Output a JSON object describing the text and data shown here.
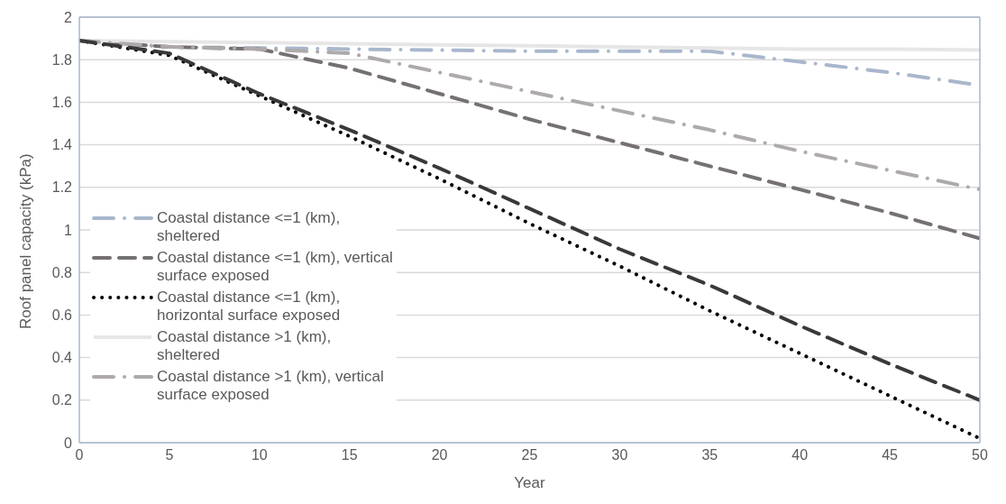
{
  "chart_data": {
    "type": "line",
    "xlabel": "Year",
    "ylabel": "Roof panel capacity (kPa)",
    "x": [
      0,
      5,
      10,
      15,
      20,
      25,
      30,
      35,
      40,
      45,
      50
    ],
    "xlim": [
      0,
      50
    ],
    "xticks": [
      0,
      5,
      10,
      15,
      20,
      25,
      30,
      35,
      40,
      45,
      50
    ],
    "ylim": [
      0,
      2
    ],
    "yticks": [
      0,
      0.2,
      0.4,
      0.6,
      0.8,
      1,
      1.2,
      1.4,
      1.6,
      1.8,
      2
    ],
    "grid": "y",
    "legend": "left",
    "marker": "none",
    "series": [
      {
        "name": "Coastal distance <=1 (km), sheltered",
        "color": "#a9b7cc",
        "line_style": "dashdot",
        "values": [
          1.89,
          1.86,
          1.855,
          1.85,
          1.845,
          1.84,
          1.84,
          1.84,
          1.79,
          1.74,
          1.68
        ]
      },
      {
        "name": "Coastal distance <=1 (km), vertical surface exposed",
        "color": "#767171",
        "line_style": "dashed",
        "values": [
          1.89,
          1.86,
          1.85,
          1.76,
          1.64,
          1.52,
          1.41,
          1.3,
          1.19,
          1.08,
          0.96
        ]
      },
      {
        "name": "Coastal distance <=1 (km), horizontal surface exposed",
        "color": "#000000",
        "line_style": "dotted",
        "values": [
          1.89,
          1.82,
          1.63,
          1.44,
          1.24,
          1.03,
          0.83,
          0.62,
          0.42,
          0.22,
          0.02
        ]
      },
      {
        "name": "Coastal distance >1 (km), sheltered",
        "color": "#e7e6e6",
        "line_style": "solid",
        "values": [
          1.89,
          1.885,
          1.88,
          1.875,
          1.87,
          1.865,
          1.86,
          1.855,
          1.85,
          1.85,
          1.845
        ]
      },
      {
        "name": "Coastal distance >1 (km), vertical surface exposed",
        "color": "#aeaaaa",
        "line_style": "dashdot",
        "values": [
          1.89,
          1.86,
          1.85,
          1.83,
          1.74,
          1.65,
          1.56,
          1.47,
          1.37,
          1.28,
          1.19
        ]
      },
      {
        "color": "#3b3838",
        "line_style": "dashed",
        "values": [
          1.89,
          1.83,
          1.64,
          1.47,
          1.29,
          1.1,
          0.91,
          0.74,
          0.55,
          0.37,
          0.2
        ]
      }
    ]
  }
}
